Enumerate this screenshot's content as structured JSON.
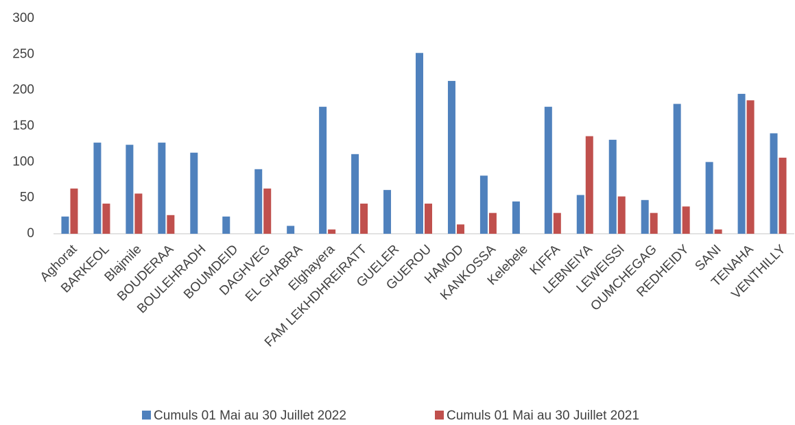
{
  "chart_data": {
    "type": "bar",
    "categories": [
      "Aghorat",
      "BARKEOL",
      "Blajmile",
      "BOUDERAA",
      "BOULEHRADH",
      "BOUMDEID",
      "DAGHVEG",
      "EL GHABRA",
      "Elghayera",
      "FAM LEKHDHREIRATT",
      "GUELER",
      "GUEROU",
      "HAMOD",
      "KANKOSSA",
      "Kelebele",
      "KIFFA",
      "LEBNEIYA",
      "LEWEISSI",
      "OUMCHEGAG",
      "REDHEIDY",
      "SANI",
      "TENAHA",
      "VENTHILLY"
    ],
    "series": [
      {
        "name": "Cumuls 01 Mai au 30 Juillet 2022",
        "color": "#4f81bd",
        "values": [
          24,
          127,
          124,
          127,
          113,
          24,
          90,
          11,
          177,
          111,
          61,
          252,
          213,
          81,
          45,
          177,
          54,
          131,
          47,
          181,
          100,
          195,
          140
        ]
      },
      {
        "name": "Cumuls 01 Mai au 30 Juillet 2021",
        "color": "#c0504d",
        "values": [
          63,
          42,
          56,
          26,
          0,
          0,
          63,
          0,
          6,
          42,
          0,
          42,
          13,
          29,
          0,
          29,
          136,
          52,
          29,
          38,
          6,
          186,
          106
        ]
      }
    ],
    "ylim": [
      0,
      300
    ],
    "yticks": [
      0,
      50,
      100,
      150,
      200,
      250,
      300
    ],
    "grid": false,
    "legend": "bottom"
  }
}
